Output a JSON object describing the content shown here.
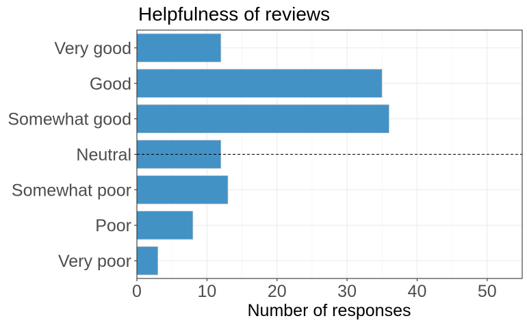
{
  "chart_data": {
    "type": "bar",
    "orientation": "horizontal",
    "title": "Helpfulness of reviews",
    "xlabel": "Number of responses",
    "ylabel": "",
    "categories": [
      "Very good",
      "Good",
      "Somewhat good",
      "Neutral",
      "Somewhat poor",
      "Poor",
      "Very poor"
    ],
    "values": [
      12,
      35,
      36,
      12,
      13,
      8,
      3
    ],
    "xlim": [
      0,
      55
    ],
    "xticks": [
      0,
      10,
      20,
      30,
      40,
      50
    ],
    "bar_color": "#4292c6",
    "reference_line": {
      "category": "Neutral",
      "style": "dashed",
      "color": "#000000"
    },
    "grid": true
  }
}
